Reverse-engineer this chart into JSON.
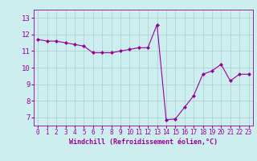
{
  "x": [
    0,
    1,
    2,
    3,
    4,
    5,
    6,
    7,
    8,
    9,
    10,
    11,
    12,
    13,
    14,
    15,
    16,
    17,
    18,
    19,
    20,
    21,
    22,
    23
  ],
  "y": [
    11.7,
    11.6,
    11.6,
    11.5,
    11.4,
    11.3,
    10.9,
    10.9,
    10.9,
    11.0,
    11.1,
    11.2,
    11.2,
    12.6,
    6.85,
    6.9,
    7.6,
    8.3,
    9.6,
    9.8,
    10.2,
    9.2,
    9.6,
    9.6
  ],
  "line_color": "#990099",
  "marker_color": "#990099",
  "bg_color": "#cceeee",
  "grid_color": "#aacccc",
  "xlabel": "Windchill (Refroidissement éolien,°C)",
  "xlabel_color": "#990099",
  "tick_color": "#990099",
  "ylim": [
    6.5,
    13.5
  ],
  "xlim": [
    -0.5,
    23.5
  ],
  "yticks": [
    7,
    8,
    9,
    10,
    11,
    12,
    13
  ],
  "xticks": [
    0,
    1,
    2,
    3,
    4,
    5,
    6,
    7,
    8,
    9,
    10,
    11,
    12,
    13,
    14,
    15,
    16,
    17,
    18,
    19,
    20,
    21,
    22,
    23
  ]
}
